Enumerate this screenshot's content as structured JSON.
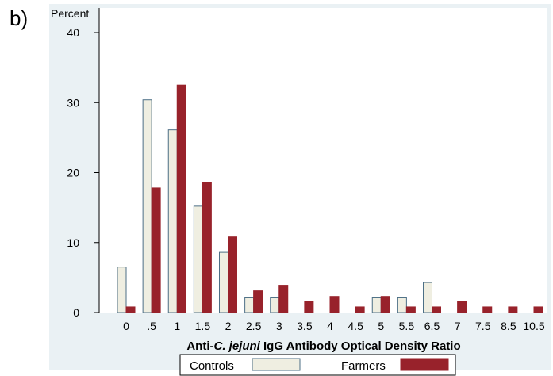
{
  "panel_label": "b)",
  "chart_data": {
    "type": "bar",
    "ylabel": "Percent",
    "xlabel_parts": [
      "Anti-",
      "C. jejuni",
      " IgG Antibody Optical Density Ratio"
    ],
    "categories": [
      "0",
      ".5",
      "1",
      "1.5",
      "2",
      "2.5",
      "3",
      "3.5",
      "4",
      "4.5",
      "5",
      "5.5",
      "6.5",
      "7",
      "7.5",
      "8.5",
      "10.5"
    ],
    "yticks": [
      0,
      10,
      20,
      30,
      40
    ],
    "ylim": [
      0,
      40
    ],
    "series": [
      {
        "name": "Controls",
        "color": "#efeee1",
        "stroke": "#4c6f86",
        "values": [
          6.5,
          30.4,
          26.1,
          15.2,
          8.6,
          2.1,
          2.1,
          0,
          0,
          0,
          2.1,
          2.1,
          4.3,
          0,
          0,
          0,
          0
        ]
      },
      {
        "name": "Farmers",
        "color": "#98222b",
        "stroke": "#98222b",
        "values": [
          0.8,
          17.8,
          32.5,
          18.6,
          10.8,
          3.1,
          3.9,
          1.6,
          2.3,
          0.8,
          2.3,
          0.8,
          0.8,
          1.6,
          0.8,
          0.8,
          0.8
        ]
      }
    ],
    "grid": false,
    "legend_position": "bottom",
    "plot_background": "#eaf1f4"
  }
}
